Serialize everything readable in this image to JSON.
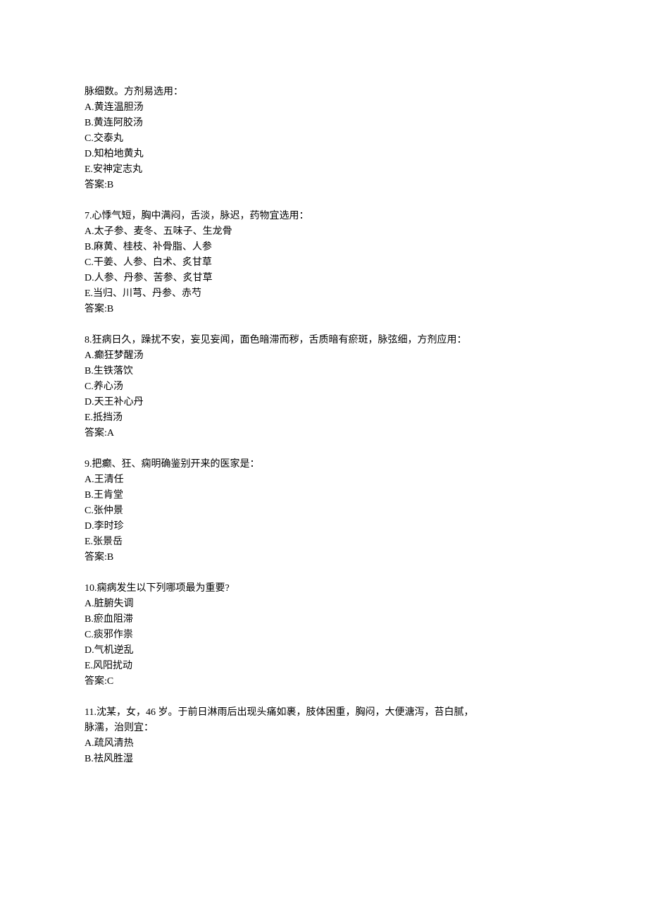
{
  "text_color": "#000000",
  "background_color": "#ffffff",
  "font_size": 14,
  "line_height": 22,
  "questions": [
    {
      "stem_lines": [
        "脉细数。方剂易选用："
      ],
      "options": [
        "A.黄连温胆汤",
        "B.黄连阿胶汤",
        "C.交泰丸",
        "D.知柏地黄丸",
        "E.安神定志丸"
      ],
      "answer": "答案:B"
    },
    {
      "stem_lines": [
        "7.心悸气短，胸中满闷，舌淡，脉迟，药物宜选用："
      ],
      "options": [
        "A.太子参、麦冬、五味子、生龙骨",
        "B.麻黄、桂枝、补骨脂、人参",
        "C.干姜、人参、白术、炙甘草",
        "D.人参、丹参、苦参、炙甘草",
        "E.当归、川芎、丹参、赤芍"
      ],
      "answer": "答案:B"
    },
    {
      "stem_lines": [
        "8.狂病日久，躁扰不安，妄见妄闻，面色暗滞而秽，舌质暗有瘀斑，脉弦细，方剂应用："
      ],
      "options": [
        "A.癫狂梦醒汤",
        "B.生铁落饮",
        "C.养心汤",
        "D.天王补心丹",
        "E.抵挡汤"
      ],
      "answer": "答案:A"
    },
    {
      "stem_lines": [
        "9.把癫、狂、痫明确鉴别开来的医家是："
      ],
      "options": [
        "A.王清任",
        "B.王肯堂",
        "C.张仲景",
        "D.李时珍",
        "E.张景岳"
      ],
      "answer": "答案:B"
    },
    {
      "stem_lines": [
        "10.痫病发生以下列哪项最为重要?"
      ],
      "options": [
        "A.脏腑失调",
        "B.瘀血阻滞",
        "C.痰邪作祟",
        "D.气机逆乱",
        "E.风阳扰动"
      ],
      "answer": "答案:C"
    },
    {
      "stem_lines": [
        "11.沈某，女，46 岁。于前日淋雨后出现头痛如裹，肢体困重，胸闷，大便溏泻，苔白腻，",
        "脉濡，治则宜："
      ],
      "options": [
        "A.疏风清热",
        "B.祛风胜湿"
      ],
      "answer": null
    }
  ]
}
